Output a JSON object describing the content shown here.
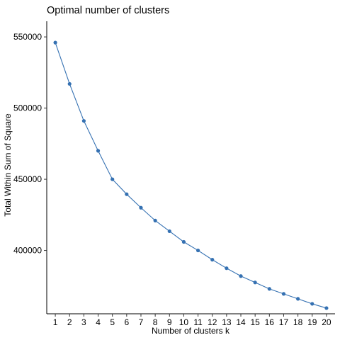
{
  "chart_data": {
    "type": "line",
    "title": "Optimal number of clusters",
    "xlabel": "Number of clusters k",
    "ylabel": "Total Within Sum of Square",
    "x": [
      1,
      2,
      3,
      4,
      5,
      6,
      7,
      8,
      9,
      10,
      11,
      12,
      13,
      14,
      15,
      16,
      17,
      18,
      19,
      20
    ],
    "series": [
      {
        "values": [
          546000,
          517000,
          491000,
          470000,
          450000,
          439500,
          430000,
          421000,
          413500,
          406000,
          400000,
          393500,
          387500,
          382000,
          377500,
          373000,
          369500,
          366000,
          362500,
          359500
        ]
      }
    ],
    "y_ticks": [
      400000,
      450000,
      500000,
      550000
    ],
    "ylim": [
      355500,
      561000
    ],
    "xlim": [
      0.4,
      20.6
    ],
    "grid": false,
    "line_color": "#3571b2",
    "point_color": "#3571b2"
  }
}
